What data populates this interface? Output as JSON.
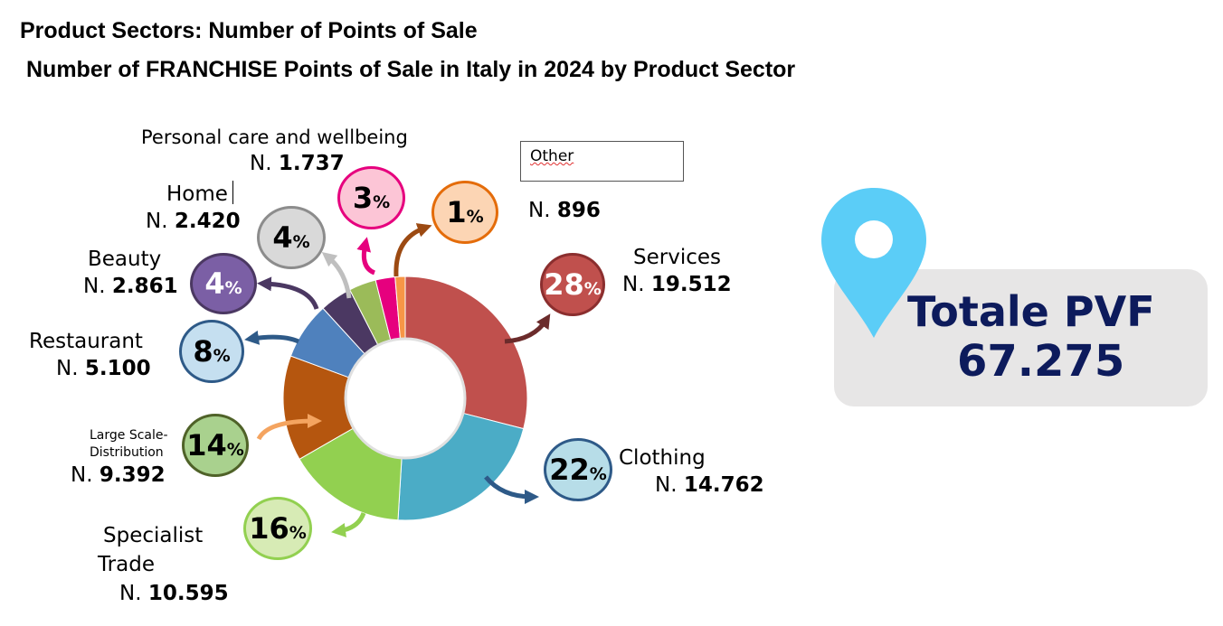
{
  "header": {
    "title": "Product Sectors: Number of Points of Sale",
    "subtitle": "Number of FRANCHISE Points of Sale in Italy in 2024 by Product Sector"
  },
  "chart_data": {
    "type": "pie",
    "hole": "donut",
    "series": [
      {
        "name": "Services",
        "value": 19512,
        "count_label": "19.512",
        "percent": "28",
        "color": "#c0504d"
      },
      {
        "name": "Clothing",
        "value": 14762,
        "count_label": "14.762",
        "percent": "22",
        "color": "#4bacc6"
      },
      {
        "name": "Specialist Trade",
        "value": 10595,
        "count_label": "10.595",
        "percent": "16",
        "color": "#92d050"
      },
      {
        "name": "Large Scale- Distribution",
        "value": 9392,
        "count_label": "9.392",
        "percent": "14",
        "color": "#b5560f"
      },
      {
        "name": "Restaurant",
        "value": 5100,
        "count_label": "5.100",
        "percent": "8",
        "color": "#4f81bd"
      },
      {
        "name": "Beauty",
        "value": 2861,
        "count_label": "2.861",
        "percent": "4",
        "color": "#4b3862"
      },
      {
        "name": "Home",
        "value": 2420,
        "count_label": "2.420",
        "percent": "4",
        "color": "#9bbb59"
      },
      {
        "name": "Personal care and wellbeing",
        "value": 1737,
        "count_label": "1.737",
        "percent": "3",
        "color": "#e6007e"
      },
      {
        "name": "Other",
        "value": 896,
        "count_label": "896",
        "percent": "1",
        "color": "#f79646"
      }
    ]
  },
  "labels": {
    "count_prefix": "N.",
    "percent_sign": "%",
    "services_name": "Services",
    "clothing_name": "Clothing",
    "specialist_line1": "Specialist",
    "specialist_line2": "Trade",
    "large_line1": "Large Scale-",
    "large_line2": "Distribution",
    "restaurant_name": "Restaurant",
    "beauty_name": "Beauty",
    "home_name": "Home",
    "personal_name": "Personal care and wellbeing",
    "other_name": "Other"
  },
  "total": {
    "label": "Totale PVF",
    "value": "67.275",
    "pin_color": "#5bcdf7",
    "text_color": "#0d1b5c"
  }
}
